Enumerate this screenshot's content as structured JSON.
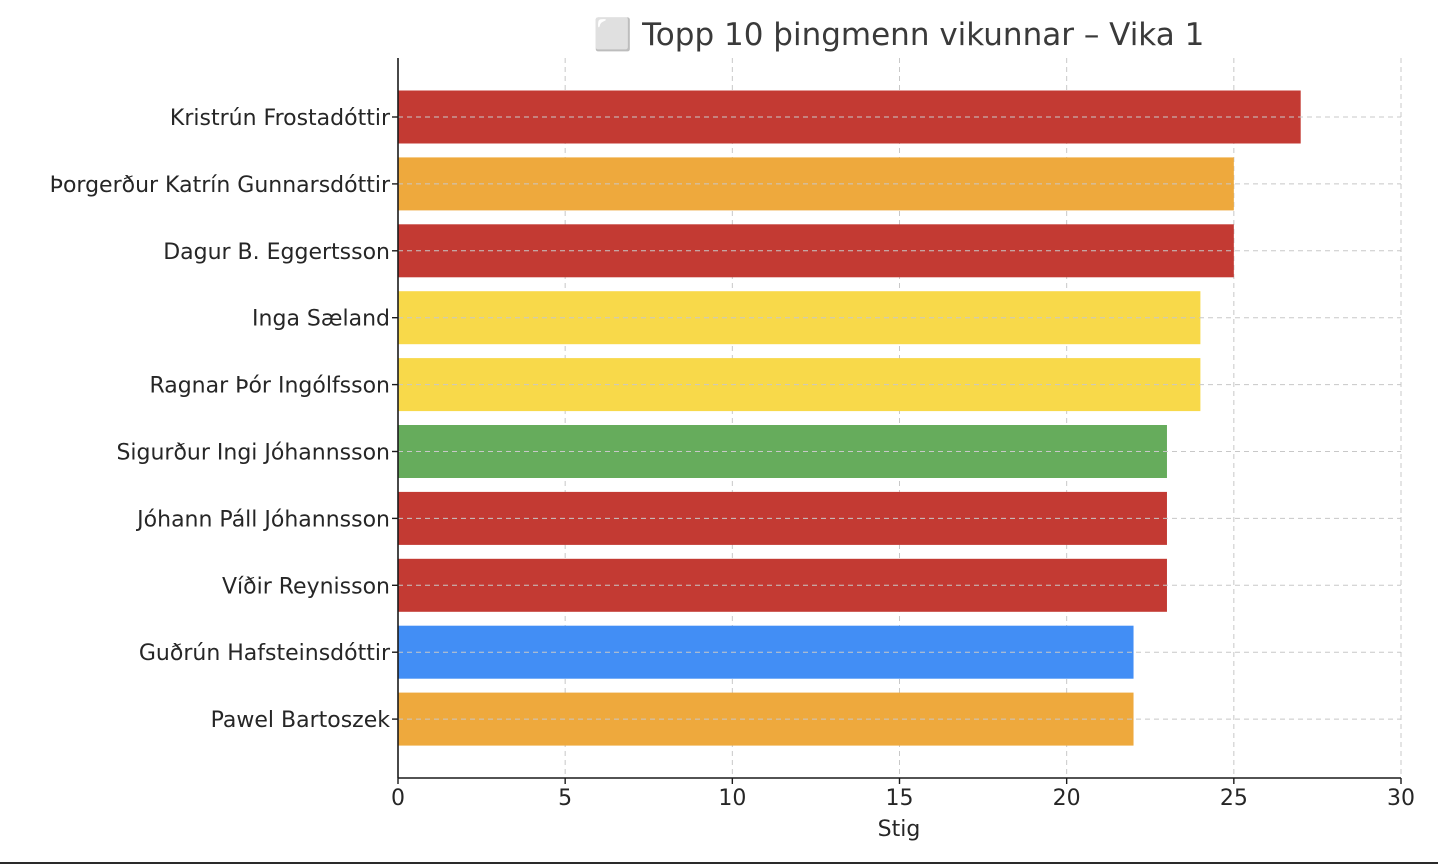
{
  "chart_data": {
    "type": "bar",
    "orientation": "horizontal",
    "title": "⬜ Topp 10 þingmenn vikunnar – Vika 1",
    "xlabel": "Stig",
    "ylabel": "",
    "xlim": [
      0,
      30
    ],
    "xticks": [
      0,
      5,
      10,
      15,
      20,
      25,
      30
    ],
    "grid": true,
    "categories": [
      "Kristrún Frostadóttir",
      "Þorgerður Katrín Gunnarsdóttir",
      "Dagur B. Eggertsson",
      "Inga Sæland",
      "Ragnar Þór Ingólfsson",
      "Sigurður Ingi Jóhannsson",
      "Jóhann Páll Jóhannsson",
      "Víðir Reynisson",
      "Guðrún Hafsteinsdóttir",
      "Pawel Bartoszek"
    ],
    "values": [
      27,
      25,
      25,
      24,
      24,
      23,
      23,
      23,
      22,
      22
    ],
    "colors": [
      "#c33a33",
      "#eea93d",
      "#c33a33",
      "#f8d94a",
      "#f8d94a",
      "#66ac5c",
      "#c33a33",
      "#c33a33",
      "#428ef5",
      "#eea93d"
    ]
  }
}
